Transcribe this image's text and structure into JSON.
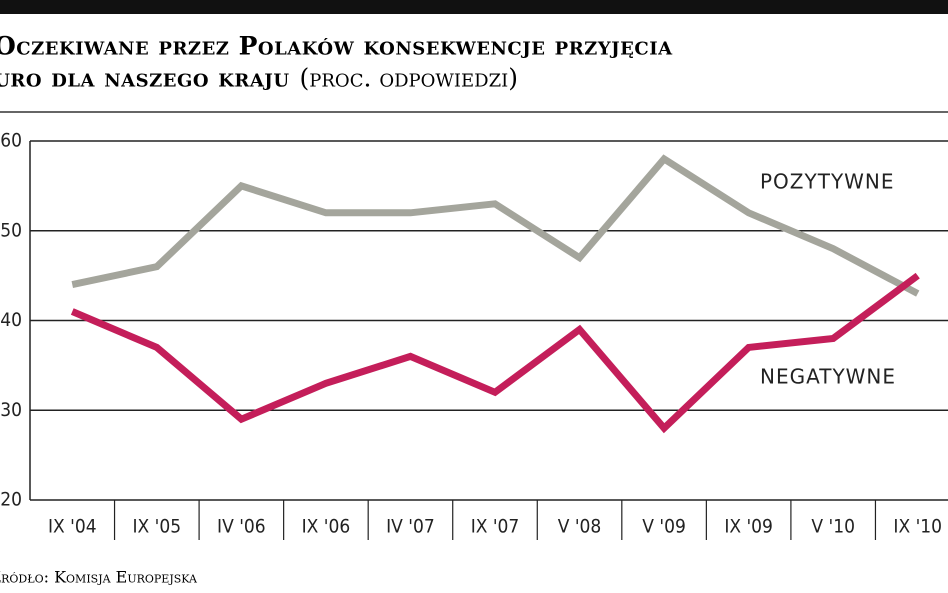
{
  "chart_data": {
    "type": "line",
    "title": [
      "Oczekiwane przez Polaków konsekwencje przyjęcia",
      "euro dla naszego kraju"
    ],
    "subtitle": "(proc. odpowiedzi)",
    "source": "Źródło: Komisja Europejska",
    "categories": [
      "IX '04",
      "IX '05",
      "IV '06",
      "IX '06",
      "IV '07",
      "IX '07",
      "V '08",
      "V '09",
      "IX '09",
      "V '10",
      "IX '10"
    ],
    "series": [
      {
        "name": "POZYTYWNE",
        "color": "#a4a59c",
        "values": [
          44,
          46,
          55,
          52,
          52,
          53,
          47,
          58,
          52,
          48,
          43
        ]
      },
      {
        "name": "NEGATYWNE",
        "color": "#c41e5a",
        "values": [
          41,
          37,
          29,
          33,
          36,
          32,
          39,
          28,
          37,
          38,
          45
        ]
      }
    ],
    "ylim": [
      20,
      60
    ],
    "yticks": [
      20,
      30,
      40,
      50,
      60
    ],
    "grid": true
  }
}
